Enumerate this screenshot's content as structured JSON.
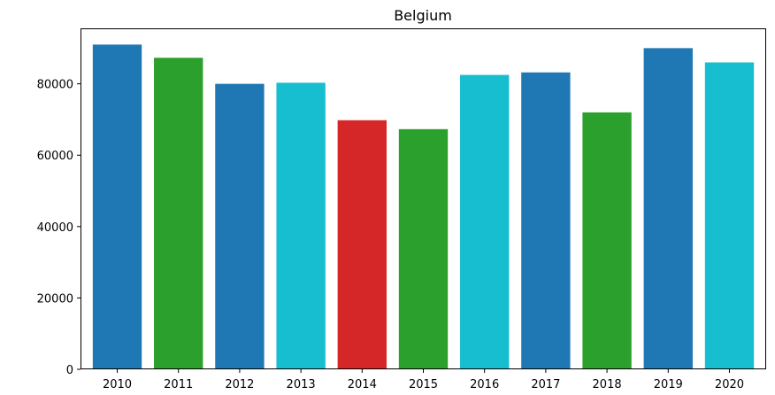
{
  "chart_data": {
    "type": "bar",
    "title": "Belgium",
    "xlabel": "",
    "ylabel": "",
    "categories": [
      "2010",
      "2011",
      "2012",
      "2013",
      "2014",
      "2015",
      "2016",
      "2017",
      "2018",
      "2019",
      "2020"
    ],
    "values": [
      91000,
      87300,
      80000,
      80300,
      69800,
      67300,
      82500,
      83200,
      72000,
      90000,
      86000
    ],
    "bar_colors": [
      "#1f77b4",
      "#2ca02c",
      "#1f77b4",
      "#17becf",
      "#d62728",
      "#2ca02c",
      "#17becf",
      "#1f77b4",
      "#2ca02c",
      "#1f77b4",
      "#17becf"
    ],
    "ylim": [
      0,
      95550
    ],
    "yticks": [
      0,
      20000,
      40000,
      60000,
      80000
    ],
    "grid": false,
    "legend": "none"
  }
}
